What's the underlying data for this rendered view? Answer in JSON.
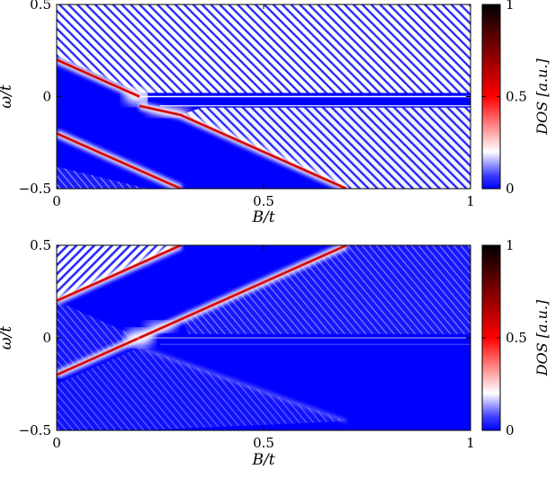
{
  "chart_data": [
    {
      "type": "heatmap",
      "panel": "top",
      "xlabel": "B/t",
      "ylabel": "ω/t",
      "xlim": [
        0,
        1
      ],
      "ylim": [
        -0.5,
        0.5
      ],
      "x_ticks": [
        "0",
        "0.5",
        "1"
      ],
      "y_ticks": [
        "0.5",
        "0",
        "−0.5"
      ],
      "colorbar": {
        "label": "DOS [a.u.]",
        "ticks": [
          "1",
          "0.5",
          "0"
        ],
        "range": [
          0,
          1
        ],
        "colors": [
          "#0000ff",
          "#ffffff",
          "#ff0000",
          "#000000"
        ]
      },
      "features": [
        {
          "name": "upper-edge-branch",
          "points": [
            [
              0,
              0.2
            ],
            [
              0.2,
              0.0
            ]
          ]
        },
        {
          "name": "lower-left-branch",
          "points": [
            [
              0,
              -0.2
            ],
            [
              0.3,
              -0.5
            ]
          ]
        },
        {
          "name": "main-diagonal-branch",
          "points": [
            [
              0.2,
              -0.05
            ],
            [
              0.3,
              -0.1
            ],
            [
              0.7,
              -0.5
            ]
          ]
        },
        {
          "name": "zero-energy-flat-band",
          "points": [
            [
              0.2,
              0.0
            ],
            [
              1.0,
              0.0
            ]
          ]
        },
        {
          "name": "lower-flat-band",
          "points": [
            [
              0.25,
              -0.05
            ],
            [
              1.0,
              -0.05
            ]
          ]
        }
      ]
    },
    {
      "type": "heatmap",
      "panel": "bottom",
      "xlabel": "B/t",
      "ylabel": "ω/t",
      "xlim": [
        0,
        1
      ],
      "ylim": [
        -0.5,
        0.5
      ],
      "x_ticks": [
        "0",
        "0.5",
        "1"
      ],
      "y_ticks": [
        "0.5",
        "0",
        "−0.5"
      ],
      "colorbar": {
        "label": "DOS [a.u.]",
        "ticks": [
          "1",
          "0.5",
          "0"
        ],
        "range": [
          0,
          1
        ],
        "colors": [
          "#0000ff",
          "#ffffff",
          "#ff0000",
          "#000000"
        ]
      },
      "features": [
        {
          "name": "upper-left-branch",
          "points": [
            [
              0,
              0.2
            ],
            [
              0.3,
              0.5
            ]
          ]
        },
        {
          "name": "rising-branch",
          "points": [
            [
              0,
              -0.2
            ],
            [
              0.2,
              0.0
            ]
          ]
        },
        {
          "name": "main-rising-branch",
          "points": [
            [
              0.2,
              0.0
            ],
            [
              0.3,
              0.1
            ],
            [
              0.7,
              0.5
            ]
          ]
        },
        {
          "name": "zero-energy-flat-band",
          "points": [
            [
              0.2,
              0.0
            ],
            [
              1.0,
              0.0
            ]
          ]
        },
        {
          "name": "faint-descending-branch",
          "points": [
            [
              0.2,
              -0.05
            ],
            [
              0.7,
              -0.45
            ]
          ]
        }
      ]
    }
  ]
}
